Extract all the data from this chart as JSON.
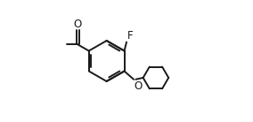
{
  "background_color": "#ffffff",
  "line_color": "#1a1a1a",
  "line_width": 1.5,
  "figsize": [
    2.84,
    1.38
  ],
  "dpi": 100,
  "xlim": [
    -0.05,
    1.05
  ],
  "ylim": [
    -0.05,
    1.05
  ]
}
